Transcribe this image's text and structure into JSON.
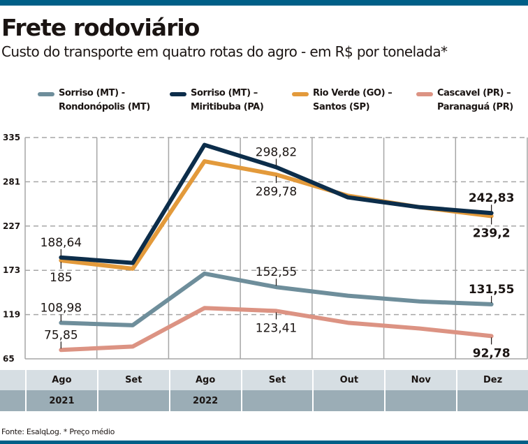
{
  "header": {
    "title": "Frete rodoviário",
    "subtitle": "Custo do transporte em quatro rotas do agro - em R$ por tonelada*"
  },
  "footer": {
    "source": "Fonte: EsalqLog. * Preço médio"
  },
  "colors": {
    "brand_bar": "#005f87",
    "grid": "#a6a6a6",
    "band_light": "#d6dee3",
    "band_dark": "#9badb6"
  },
  "chart_data": {
    "type": "line",
    "title": "Frete rodoviário",
    "subtitle": "Custo do transporte em quatro rotas do agro - em R$ por tonelada*",
    "xlabel": "",
    "ylabel": "R$ por tonelada",
    "categories": [
      "Ago",
      "Set",
      "Ago",
      "Set",
      "Out",
      "Nov",
      "Dez"
    ],
    "years": [
      "2021",
      "",
      "2022",
      "",
      "",
      "",
      ""
    ],
    "yticks": [
      335,
      281,
      227,
      173,
      119,
      65
    ],
    "ylim": [
      65,
      335
    ],
    "grid": true,
    "legend_position": "top",
    "series": [
      {
        "name": "Sorriso (MT) - Rondonópolis (MT)",
        "legend_lines": [
          "Sorriso (MT) -",
          "Rondonópolis (MT)"
        ],
        "color": "#6e8e9b",
        "values": [
          108.98,
          106,
          169,
          152.55,
          142,
          135,
          131.55
        ],
        "labels": [
          {
            "index": 0,
            "text": "108,98",
            "position": "above",
            "bold": false
          },
          {
            "index": 3,
            "text": "152,55",
            "position": "above",
            "bold": false
          },
          {
            "index": 6,
            "text": "131,55",
            "position": "above",
            "bold": true
          }
        ]
      },
      {
        "name": "Sorriso (MT) – Miritibuba (PA)",
        "legend_lines": [
          "Sorriso (MT) –",
          "Miritibuba (PA)"
        ],
        "color": "#0c2d4a",
        "values": [
          188.64,
          182,
          326,
          298.82,
          262,
          250,
          242.83
        ],
        "labels": [
          {
            "index": 0,
            "text": "188,64",
            "position": "above",
            "bold": false
          },
          {
            "index": 3,
            "text": "298,82",
            "position": "above",
            "bold": false
          },
          {
            "index": 6,
            "text": "242,83",
            "position": "above",
            "bold": true
          }
        ]
      },
      {
        "name": "Rio Verde (GO) – Santos (SP)",
        "legend_lines": [
          "Rio Verde (GO) –",
          "Santos (SP)"
        ],
        "color": "#e39a3b",
        "values": [
          185,
          175,
          306,
          289.78,
          264,
          250,
          239.2
        ],
        "labels": [
          {
            "index": 0,
            "text": "185",
            "position": "below",
            "bold": false
          },
          {
            "index": 3,
            "text": "289,78",
            "position": "below",
            "bold": false
          },
          {
            "index": 6,
            "text": "239,2",
            "position": "below",
            "bold": true
          }
        ]
      },
      {
        "name": "Cascavel (PR) – Paranaguá (PR)",
        "legend_lines": [
          "Cascavel (PR) –",
          "Paranaguá (PR)"
        ],
        "color": "#dc9383",
        "values": [
          75.85,
          80,
          127,
          123.41,
          109,
          102,
          92.78
        ],
        "labels": [
          {
            "index": 0,
            "text": "75,85",
            "position": "above",
            "bold": false
          },
          {
            "index": 3,
            "text": "123,41",
            "position": "below",
            "bold": false
          },
          {
            "index": 6,
            "text": "92,78",
            "position": "below",
            "bold": true
          }
        ]
      }
    ]
  }
}
